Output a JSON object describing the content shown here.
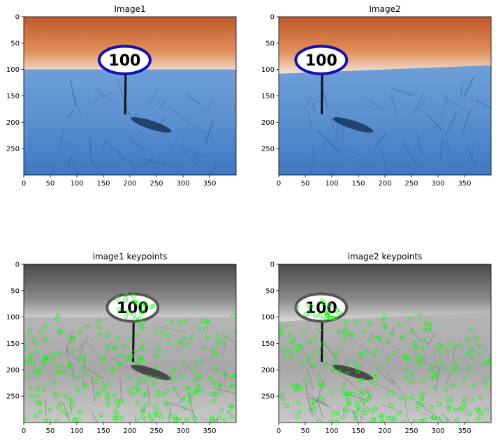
{
  "chart_data": [
    {
      "type": "image",
      "title": "Image1",
      "variant": "color",
      "sign_x": 190,
      "sign_text": "100",
      "horizon_tilt": 0,
      "xticks": [
        0,
        50,
        100,
        150,
        200,
        250,
        300,
        350
      ],
      "yticks": [
        0,
        50,
        100,
        150,
        200,
        250
      ],
      "xlim": [
        0,
        400
      ],
      "ylim": [
        300,
        0
      ]
    },
    {
      "type": "image",
      "title": "Image2",
      "variant": "color",
      "sign_x": 80,
      "sign_text": "100",
      "horizon_tilt": 1,
      "xticks": [
        0,
        50,
        100,
        150,
        200,
        250,
        300,
        350
      ],
      "yticks": [
        0,
        50,
        100,
        150,
        200,
        250
      ],
      "xlim": [
        0,
        400
      ],
      "ylim": [
        300,
        0
      ]
    },
    {
      "type": "image",
      "title": "image1 keypoints",
      "variant": "keypoints",
      "sign_x": 205,
      "sign_text": "100",
      "horizon_tilt": 0,
      "keypoint_color": "#00ff00",
      "xticks": [
        0,
        50,
        100,
        150,
        200,
        250,
        300,
        350
      ],
      "yticks": [
        0,
        50,
        100,
        150,
        200,
        250
      ],
      "xlim": [
        0,
        400
      ],
      "ylim": [
        300,
        0
      ]
    },
    {
      "type": "image",
      "title": "image2 keypoints",
      "variant": "keypoints",
      "sign_x": 80,
      "sign_text": "100",
      "horizon_tilt": 1,
      "keypoint_color": "#00ff00",
      "xticks": [
        0,
        50,
        100,
        150,
        200,
        250,
        300,
        350
      ],
      "yticks": [
        0,
        50,
        100,
        150,
        200,
        250
      ],
      "xlim": [
        0,
        400
      ],
      "ylim": [
        300,
        0
      ]
    }
  ]
}
